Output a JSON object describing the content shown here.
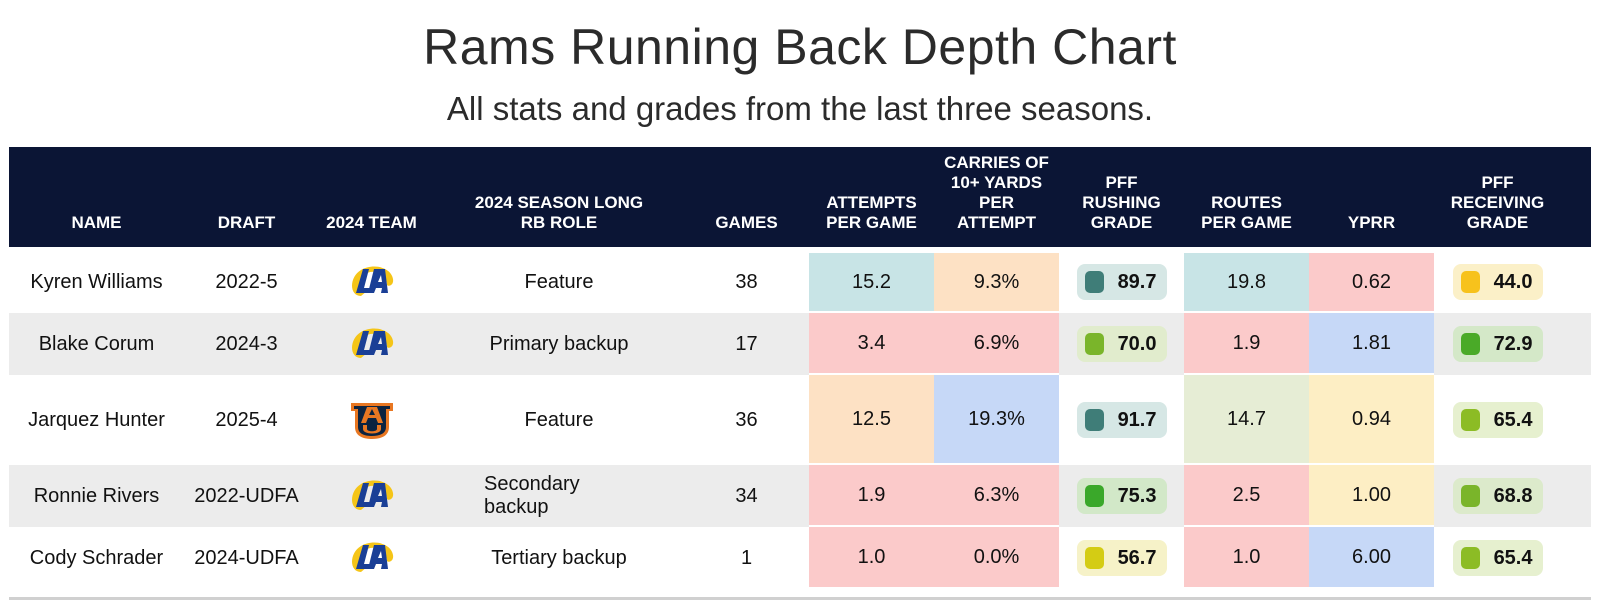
{
  "title": "Rams Running Back Depth Chart",
  "subtitle": "All stats and grades from the last three seasons.",
  "chart_data": {
    "type": "table",
    "columns": [
      {
        "key": "name",
        "label": "NAME"
      },
      {
        "key": "draft",
        "label": "DRAFT"
      },
      {
        "key": "team",
        "label": "2024 TEAM"
      },
      {
        "key": "role",
        "label": "2024 SEASON LONG RB ROLE"
      },
      {
        "key": "games",
        "label": "GAMES"
      },
      {
        "key": "apg",
        "label": "ATTEMPTS PER GAME"
      },
      {
        "key": "carries10",
        "label": "CARRIES OF 10+ YARDS PER ATTEMPT"
      },
      {
        "key": "rush_grade",
        "label": "PFF RUSHING GRADE"
      },
      {
        "key": "rpg",
        "label": "ROUTES PER GAME"
      },
      {
        "key": "yprr",
        "label": "YPRR"
      },
      {
        "key": "recv_grade",
        "label": "PFF RECEIVING GRADE"
      }
    ],
    "rows": [
      {
        "name": "Kyren Williams",
        "draft": "2022-5",
        "team_logo": "rams-logo",
        "role": "Feature",
        "games": "38",
        "apg": {
          "text": "15.2",
          "color": "#c8e4e6"
        },
        "carries10": {
          "text": "9.3%",
          "color": "#fde1c4"
        },
        "rush_grade": {
          "text": "89.7",
          "sq": "#3f7d78",
          "bg": "#d6e7e5"
        },
        "rpg": {
          "text": "19.8",
          "color": "#c8e4e6"
        },
        "yprr": {
          "text": "0.62",
          "color": "#fbcaca"
        },
        "recv_grade": {
          "text": "44.0",
          "sq": "#f7c21c",
          "bg": "#fbf0c8"
        }
      },
      {
        "name": "Blake Corum",
        "draft": "2024-3",
        "team_logo": "rams-logo",
        "role": "Primary backup",
        "games": "17",
        "apg": {
          "text": "3.4",
          "color": "#fbcaca"
        },
        "carries10": {
          "text": "6.9%",
          "color": "#fbcaca"
        },
        "rush_grade": {
          "text": "70.0",
          "sq": "#7ab52a",
          "bg": "#e1eccd"
        },
        "rpg": {
          "text": "1.9",
          "color": "#fbcaca"
        },
        "yprr": {
          "text": "1.81",
          "color": "#c6d8f7"
        },
        "recv_grade": {
          "text": "72.9",
          "sq": "#4aaa28",
          "bg": "#d4e8c8"
        }
      },
      {
        "name": "Jarquez Hunter",
        "draft": "2025-4",
        "team_logo": "auburn-logo",
        "role": "Feature",
        "games": "36",
        "apg": {
          "text": "12.5",
          "color": "#fde1c4"
        },
        "carries10": {
          "text": "19.3%",
          "color": "#c6d8f7"
        },
        "rush_grade": {
          "text": "91.7",
          "sq": "#3f7d78",
          "bg": "#d6e7e5"
        },
        "rpg": {
          "text": "14.7",
          "color": "#e6edd5"
        },
        "yprr": {
          "text": "0.94",
          "color": "#fdeec4"
        },
        "recv_grade": {
          "text": "65.4",
          "sq": "#8cbc25",
          "bg": "#e6f0cf"
        }
      },
      {
        "name": "Ronnie Rivers",
        "draft": "2022-UDFA",
        "team_logo": "rams-logo",
        "role": "Secondary backup",
        "games": "34",
        "apg": {
          "text": "1.9",
          "color": "#fbcaca"
        },
        "carries10": {
          "text": "6.3%",
          "color": "#fbcaca"
        },
        "rush_grade": {
          "text": "75.3",
          "sq": "#3aa82a",
          "bg": "#d2e8c8"
        },
        "rpg": {
          "text": "2.5",
          "color": "#fbcaca"
        },
        "yprr": {
          "text": "1.00",
          "color": "#fdeec4"
        },
        "recv_grade": {
          "text": "68.8",
          "sq": "#7ab52a",
          "bg": "#dceacb"
        }
      },
      {
        "name": "Cody Schrader",
        "draft": "2024-UDFA",
        "team_logo": "rams-logo",
        "role": "Tertiary backup",
        "games": "1",
        "apg": {
          "text": "1.0",
          "color": "#fbcaca"
        },
        "carries10": {
          "text": "0.0%",
          "color": "#fbcaca"
        },
        "rush_grade": {
          "text": "56.7",
          "sq": "#d4cc14",
          "bg": "#f6f2c8"
        },
        "rpg": {
          "text": "1.0",
          "color": "#fbcaca"
        },
        "yprr": {
          "text": "6.00",
          "color": "#c6d8f7"
        },
        "recv_grade": {
          "text": "65.4",
          "sq": "#8cbc25",
          "bg": "#e6f0cf"
        }
      }
    ]
  }
}
